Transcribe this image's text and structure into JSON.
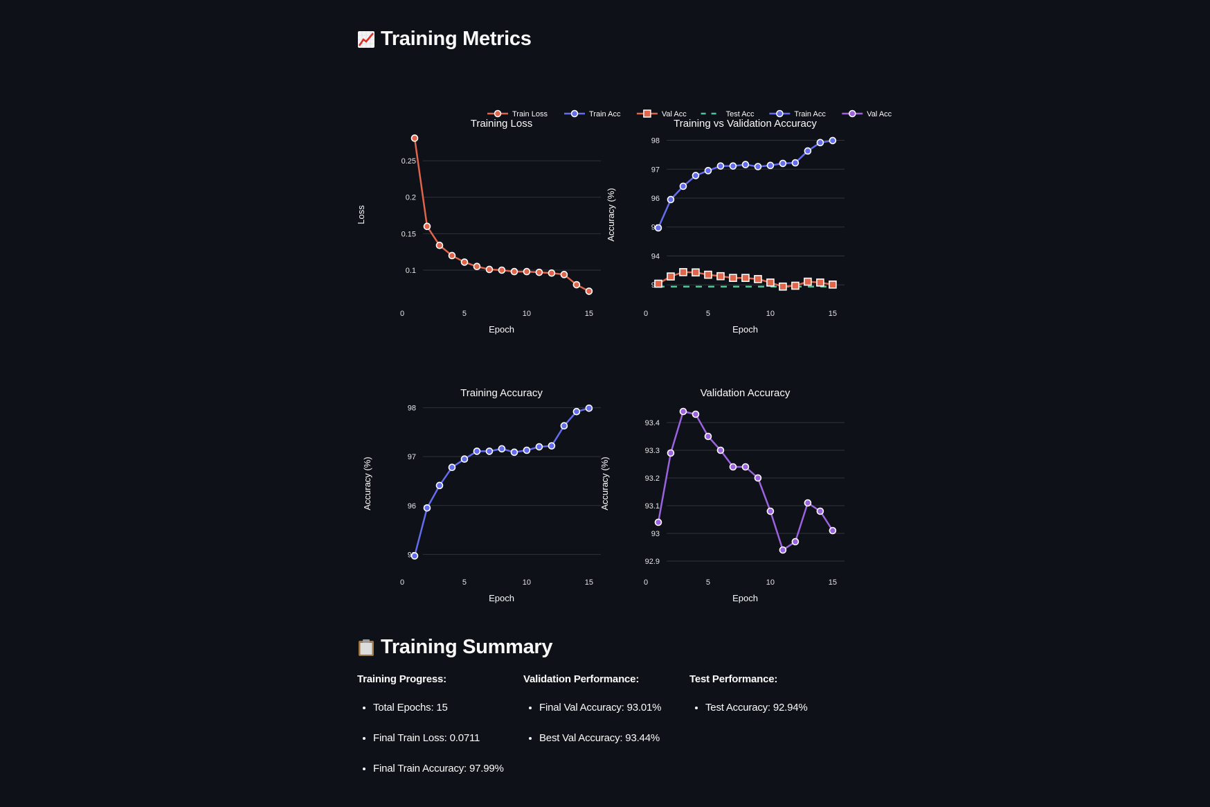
{
  "header": {
    "title": "Training Metrics",
    "icon": "chart-increasing-icon"
  },
  "legend": [
    {
      "label": "Train Loss",
      "color": "#e0654b",
      "marker": "circle",
      "dash": false
    },
    {
      "label": "Train Acc",
      "color": "#646dee",
      "marker": "circle",
      "dash": false
    },
    {
      "label": "Val Acc",
      "color": "#e0654b",
      "marker": "square",
      "dash": false
    },
    {
      "label": "Test Acc",
      "color": "#4dc49a",
      "marker": "none",
      "dash": true
    },
    {
      "label": "Train Acc",
      "color": "#646dee",
      "marker": "circle",
      "dash": false
    },
    {
      "label": "Val Acc",
      "color": "#9b63e0",
      "marker": "circle",
      "dash": false
    }
  ],
  "chart_data": [
    {
      "type": "line",
      "title": "Training Loss",
      "xlabel": "Epoch",
      "ylabel": "Loss",
      "x": [
        1,
        2,
        3,
        4,
        5,
        6,
        7,
        8,
        9,
        10,
        11,
        12,
        13,
        14,
        15
      ],
      "xticks": [
        "0",
        "5",
        "10",
        "15"
      ],
      "yticks": [
        "0.1",
        "0.15",
        "0.2",
        "0.25"
      ],
      "ylim": [
        0.062,
        0.29
      ],
      "series": [
        {
          "name": "Train Loss",
          "color": "#e0654b",
          "marker": "circle",
          "values": [
            0.281,
            0.16,
            0.134,
            0.12,
            0.111,
            0.105,
            0.101,
            0.1,
            0.098,
            0.098,
            0.097,
            0.096,
            0.094,
            0.08,
            0.0711
          ]
        }
      ]
    },
    {
      "type": "line",
      "title": "Training vs Validation Accuracy",
      "xlabel": "Epoch",
      "ylabel": "Accuracy (%)",
      "x": [
        1,
        2,
        3,
        4,
        5,
        6,
        7,
        8,
        9,
        10,
        11,
        12,
        13,
        14,
        15
      ],
      "xticks": [
        "0",
        "5",
        "10",
        "15"
      ],
      "yticks": [
        "93",
        "94",
        "95",
        "96",
        "97",
        "98"
      ],
      "ylim": [
        92.55,
        98.3
      ],
      "series": [
        {
          "name": "Train Acc",
          "color": "#646dee",
          "marker": "circle",
          "values": [
            94.97,
            95.95,
            96.41,
            96.78,
            96.95,
            97.11,
            97.11,
            97.16,
            97.09,
            97.13,
            97.2,
            97.22,
            97.63,
            97.92,
            97.99
          ]
        },
        {
          "name": "Val Acc",
          "color": "#e0654b",
          "marker": "square",
          "values": [
            93.04,
            93.29,
            93.44,
            93.43,
            93.35,
            93.3,
            93.24,
            93.24,
            93.2,
            93.08,
            92.94,
            92.97,
            93.11,
            93.08,
            93.01
          ]
        },
        {
          "name": "Test Acc",
          "color": "#4dc49a",
          "marker": "none",
          "dash": true,
          "values": [
            92.94,
            92.94,
            92.94,
            92.94,
            92.94,
            92.94,
            92.94,
            92.94,
            92.94,
            92.94,
            92.94,
            92.94,
            92.94,
            92.94,
            92.94
          ]
        }
      ]
    },
    {
      "type": "line",
      "title": "Training Accuracy",
      "xlabel": "Epoch",
      "ylabel": "Accuracy (%)",
      "x": [
        1,
        2,
        3,
        4,
        5,
        6,
        7,
        8,
        9,
        10,
        11,
        12,
        13,
        14,
        15
      ],
      "xticks": [
        "0",
        "5",
        "10",
        "15"
      ],
      "yticks": [
        "95",
        "96",
        "97",
        "98"
      ],
      "ylim": [
        94.75,
        98.15
      ],
      "series": [
        {
          "name": "Train Acc",
          "color": "#646dee",
          "marker": "circle",
          "values": [
            94.97,
            95.95,
            96.41,
            96.78,
            96.95,
            97.11,
            97.11,
            97.16,
            97.09,
            97.13,
            97.2,
            97.22,
            97.63,
            97.92,
            97.99
          ]
        }
      ]
    },
    {
      "type": "line",
      "title": "Validation Accuracy",
      "xlabel": "Epoch",
      "ylabel": "Accuracy (%)",
      "x": [
        1,
        2,
        3,
        4,
        5,
        6,
        7,
        8,
        9,
        10,
        11,
        12,
        13,
        14,
        15
      ],
      "xticks": [
        "0",
        "5",
        "10",
        "15"
      ],
      "yticks": [
        "92.9",
        "93",
        "93.1",
        "93.2",
        "93.3",
        "93.4"
      ],
      "ylim": [
        92.88,
        93.48
      ],
      "series": [
        {
          "name": "Val Acc",
          "color": "#9b63e0",
          "marker": "circle",
          "values": [
            93.04,
            93.29,
            93.44,
            93.43,
            93.35,
            93.3,
            93.24,
            93.24,
            93.2,
            93.08,
            92.94,
            92.97,
            93.11,
            93.08,
            93.01
          ]
        }
      ]
    }
  ],
  "summary": {
    "title": "Training Summary",
    "icon": "clipboard-icon",
    "columns": [
      {
        "title": "Training Progress:",
        "items": [
          "Total Epochs: 15",
          "Final Train Loss: 0.0711",
          "Final Train Accuracy: 97.99%"
        ]
      },
      {
        "title": "Validation Performance:",
        "items": [
          "Final Val Accuracy: 93.01%",
          "Best Val Accuracy: 93.44%"
        ]
      },
      {
        "title": "Test Performance:",
        "items": [
          "Test Accuracy: 92.94%"
        ]
      }
    ]
  }
}
